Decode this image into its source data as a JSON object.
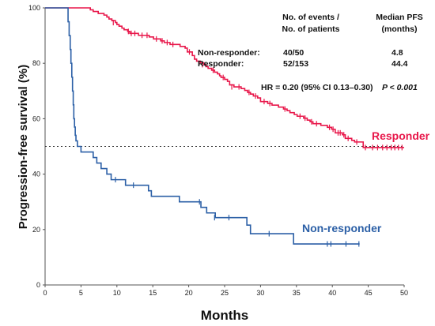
{
  "chart_data": {
    "type": "line",
    "step": true,
    "xlabel": "Months",
    "ylabel": "Progression-free survival (%)",
    "xlim": [
      0,
      50
    ],
    "ylim": [
      0,
      100
    ],
    "xticks": [
      0,
      5,
      10,
      15,
      20,
      25,
      30,
      35,
      40,
      45,
      50
    ],
    "yticks": [
      0,
      20,
      40,
      60,
      80,
      100
    ],
    "grid": false,
    "median_reference_y": 50,
    "series": [
      {
        "name": "Responder",
        "color": "#e8174a",
        "points": [
          [
            0,
            100
          ],
          [
            6,
            100
          ],
          [
            6.3,
            99.3
          ],
          [
            6.7,
            98.7
          ],
          [
            7.4,
            98
          ],
          [
            8.2,
            97.4
          ],
          [
            8.6,
            96.7
          ],
          [
            8.9,
            96
          ],
          [
            9.3,
            95.4
          ],
          [
            9.8,
            94.7
          ],
          [
            10,
            94
          ],
          [
            10.3,
            93.4
          ],
          [
            10.7,
            92.7
          ],
          [
            11,
            92.1
          ],
          [
            11.5,
            91.5
          ],
          [
            11.8,
            90.8
          ],
          [
            12.2,
            90.8
          ],
          [
            13,
            90.1
          ],
          [
            14.5,
            89.5
          ],
          [
            15.1,
            88.8
          ],
          [
            16.1,
            88.1
          ],
          [
            16.6,
            87.5
          ],
          [
            17.4,
            86.8
          ],
          [
            18.8,
            86.1
          ],
          [
            19.5,
            85.5
          ],
          [
            19.8,
            84.1
          ],
          [
            20.5,
            82.8
          ],
          [
            20.8,
            81.5
          ],
          [
            21.1,
            80.8
          ],
          [
            21.6,
            80.2
          ],
          [
            22.1,
            79.5
          ],
          [
            22.4,
            78.8
          ],
          [
            22.7,
            78.2
          ],
          [
            23.2,
            77.5
          ],
          [
            23.6,
            76.8
          ],
          [
            24,
            76.2
          ],
          [
            24.3,
            75.5
          ],
          [
            24.5,
            74.9
          ],
          [
            25,
            74.2
          ],
          [
            25.4,
            73.5
          ],
          [
            25.7,
            72.2
          ],
          [
            26.3,
            71.5
          ],
          [
            27.3,
            70.9
          ],
          [
            27.8,
            70.2
          ],
          [
            28.2,
            69.5
          ],
          [
            28.6,
            68.9
          ],
          [
            29,
            68.2
          ],
          [
            29.6,
            67.5
          ],
          [
            30,
            66.2
          ],
          [
            31,
            65.5
          ],
          [
            31.6,
            64.9
          ],
          [
            32.5,
            64.2
          ],
          [
            33.2,
            63.5
          ],
          [
            33.7,
            62.9
          ],
          [
            34.1,
            62.2
          ],
          [
            34.7,
            61.5
          ],
          [
            35.1,
            60.9
          ],
          [
            36,
            60.2
          ],
          [
            36.5,
            59.5
          ],
          [
            36.9,
            58.9
          ],
          [
            37.3,
            58.2
          ],
          [
            38.4,
            57.6
          ],
          [
            39.3,
            56.9
          ],
          [
            39.9,
            56.2
          ],
          [
            40.4,
            54.9
          ],
          [
            41.4,
            54.2
          ],
          [
            41.8,
            52.9
          ],
          [
            42.7,
            52.2
          ],
          [
            43.1,
            51.6
          ],
          [
            44,
            51.6
          ],
          [
            44.3,
            49.6
          ],
          [
            50,
            49.6
          ]
        ],
        "censor_marks": [
          [
            9.5,
            94.7
          ],
          [
            11.6,
            91.5
          ],
          [
            12,
            90.8
          ],
          [
            12.5,
            90.8
          ],
          [
            13.5,
            90.1
          ],
          [
            14.2,
            90.1
          ],
          [
            15.5,
            88.8
          ],
          [
            16.3,
            88.1
          ],
          [
            17,
            87.5
          ],
          [
            17.8,
            86.8
          ],
          [
            20.1,
            84.1
          ],
          [
            21.9,
            79.5
          ],
          [
            23.4,
            77.5
          ],
          [
            24.8,
            74.9
          ],
          [
            26,
            71.5
          ],
          [
            27,
            71.5
          ],
          [
            28.4,
            69.5
          ],
          [
            29.3,
            68.2
          ],
          [
            30.5,
            66.2
          ],
          [
            31.3,
            65.5
          ],
          [
            33.4,
            63.5
          ],
          [
            35.5,
            60.9
          ],
          [
            36.2,
            60.2
          ],
          [
            37.1,
            58.9
          ],
          [
            37.8,
            58.2
          ],
          [
            39.6,
            56.9
          ],
          [
            40.1,
            56.2
          ],
          [
            40.8,
            54.9
          ],
          [
            41.1,
            54.9
          ],
          [
            41.6,
            54.2
          ],
          [
            42.2,
            52.9
          ],
          [
            43.4,
            51.6
          ],
          [
            44.6,
            49.6
          ],
          [
            45.6,
            49.6
          ],
          [
            46.3,
            49.6
          ],
          [
            47,
            49.6
          ],
          [
            47.6,
            49.6
          ],
          [
            48.2,
            49.6
          ],
          [
            48.7,
            49.6
          ],
          [
            49.2,
            49.6
          ],
          [
            49.7,
            49.6
          ]
        ]
      },
      {
        "name": "Non-responder",
        "color": "#2b5fa6",
        "points": [
          [
            0,
            100
          ],
          [
            3,
            100
          ],
          [
            3.2,
            95
          ],
          [
            3.35,
            90
          ],
          [
            3.5,
            85
          ],
          [
            3.6,
            80
          ],
          [
            3.72,
            75
          ],
          [
            3.82,
            70
          ],
          [
            3.92,
            65
          ],
          [
            4,
            60
          ],
          [
            4.1,
            57
          ],
          [
            4.2,
            54
          ],
          [
            4.3,
            52
          ],
          [
            4.5,
            50
          ],
          [
            5,
            48
          ],
          [
            6.7,
            46
          ],
          [
            7.2,
            44
          ],
          [
            7.8,
            42
          ],
          [
            8.6,
            40
          ],
          [
            9.2,
            38
          ],
          [
            11.2,
            36
          ],
          [
            14.4,
            34
          ],
          [
            14.8,
            32
          ],
          [
            18.7,
            30
          ],
          [
            21.7,
            28
          ],
          [
            22.5,
            26
          ],
          [
            23.7,
            24.3
          ],
          [
            28.1,
            21.6
          ],
          [
            28.6,
            18.5
          ],
          [
            34.6,
            14.8
          ],
          [
            43.8,
            14.8
          ]
        ],
        "censor_marks": [
          [
            9.8,
            38
          ],
          [
            12.3,
            36
          ],
          [
            21.5,
            30
          ],
          [
            23.6,
            24.3
          ],
          [
            25.6,
            24.3
          ],
          [
            31.2,
            18.5
          ],
          [
            39.3,
            14.8
          ],
          [
            39.8,
            14.8
          ],
          [
            41.9,
            14.8
          ],
          [
            43.7,
            14.8
          ]
        ]
      }
    ],
    "annotations": {
      "events_header_line1": "No. of events /",
      "events_header_line2": "No. of patients",
      "median_header_line1": "Median PFS",
      "median_header_line2": "(months)",
      "row_nonresponder_label": "Non-responder:",
      "row_nonresponder_events": "40/50",
      "row_nonresponder_median": "4.8",
      "row_responder_label": "Responder:",
      "row_responder_events": "52/153",
      "row_responder_median": "44.4",
      "hr_text": "HR = 0.20 (95% CI 0.13–0.30)",
      "p_text": "P < 0.001"
    }
  }
}
